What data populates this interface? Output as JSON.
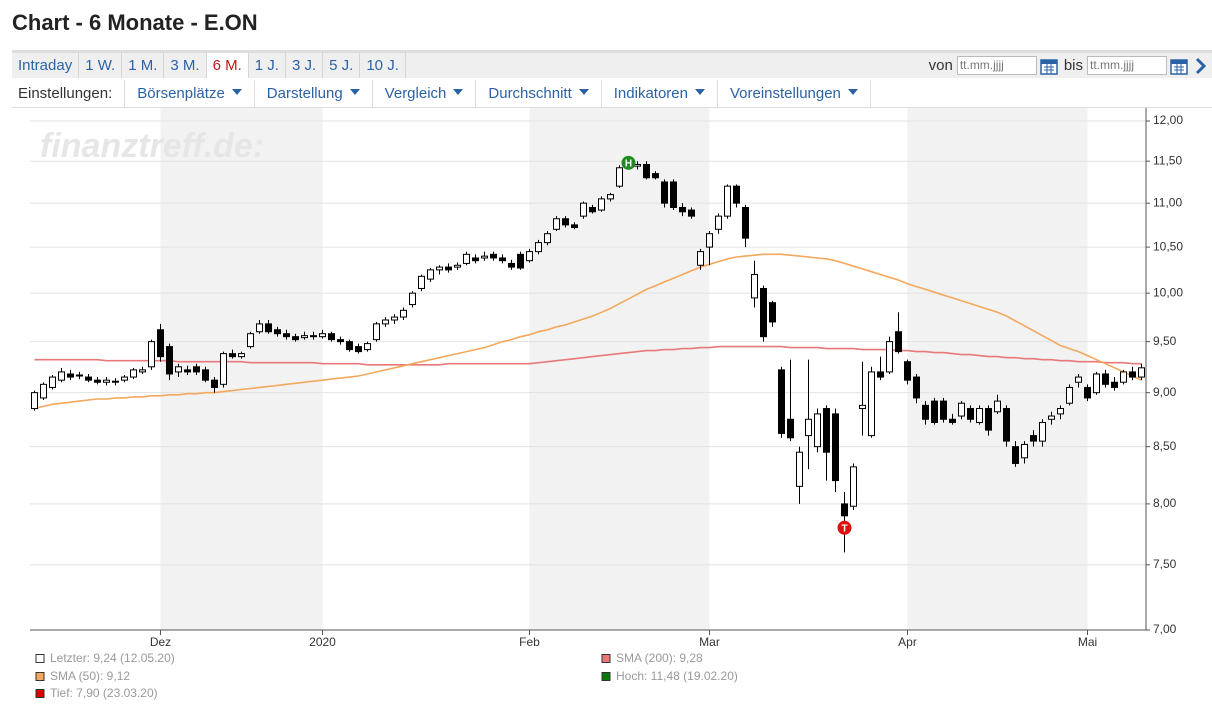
{
  "header": {
    "title": "Chart - 6 Monate - E.ON",
    "tabs": [
      "Intraday",
      "1 W.",
      "1 M.",
      "3 M.",
      "6 M.",
      "1 J.",
      "3 J.",
      "5 J.",
      "10 J."
    ],
    "from_label": "von",
    "to_label": "bis",
    "date_placeholder": "tt.mm.jjjj",
    "settings_label": "Einstellungen:",
    "menus": [
      "Börsenplätze",
      "Darstellung",
      "Vergleich",
      "Durchschnitt",
      "Indikatoren",
      "Voreinstellungen"
    ]
  },
  "chart_data": {
    "type": "candlestick",
    "watermark": "finanztreff.de:",
    "log_y": true,
    "grid": true,
    "up_color": "#ffffff",
    "down_color": "#000000",
    "ylim": [
      7,
      12
    ],
    "yticks": [
      {
        "value": 7,
        "label": "7,00"
      },
      {
        "value": 7.5,
        "label": "7,50"
      },
      {
        "value": 8,
        "label": "8,00"
      },
      {
        "value": 8.5,
        "label": "8,50"
      },
      {
        "value": 9,
        "label": "9,00"
      },
      {
        "value": 9.5,
        "label": "9,50"
      },
      {
        "value": 10,
        "label": "10,00"
      },
      {
        "value": 10.5,
        "label": "10,50"
      },
      {
        "value": 11,
        "label": "11,00"
      },
      {
        "value": 11.5,
        "label": "11,50"
      },
      {
        "value": 12,
        "label": "12,00"
      }
    ],
    "categories": [
      null,
      null,
      null,
      null,
      null,
      null,
      null,
      null,
      null,
      null,
      null,
      null,
      null,
      null,
      "Dez",
      null,
      null,
      null,
      null,
      null,
      null,
      null,
      null,
      null,
      null,
      null,
      null,
      null,
      null,
      null,
      null,
      null,
      "2020",
      null,
      null,
      null,
      null,
      null,
      null,
      null,
      null,
      null,
      null,
      null,
      null,
      null,
      null,
      null,
      null,
      null,
      null,
      null,
      null,
      null,
      null,
      "Feb",
      null,
      null,
      null,
      null,
      null,
      null,
      null,
      null,
      null,
      null,
      null,
      null,
      null,
      null,
      null,
      null,
      null,
      null,
      null,
      "Mar",
      null,
      null,
      null,
      null,
      null,
      null,
      null,
      null,
      null,
      null,
      null,
      null,
      null,
      null,
      null,
      null,
      null,
      null,
      null,
      null,
      null,
      "Apr",
      null,
      null,
      null,
      null,
      null,
      null,
      null,
      null,
      null,
      null,
      null,
      null,
      null,
      null,
      null,
      null,
      null,
      null,
      null,
      "Mai",
      null,
      null,
      null,
      null,
      null,
      null
    ],
    "ohlc": [
      [
        8.85,
        9.02,
        8.83,
        9.0
      ],
      [
        8.95,
        9.1,
        8.93,
        9.08
      ],
      [
        9.05,
        9.17,
        9.03,
        9.15
      ],
      [
        9.12,
        9.24,
        9.1,
        9.2
      ],
      [
        9.18,
        9.22,
        9.12,
        9.15
      ],
      [
        9.16,
        9.2,
        9.13,
        9.17
      ],
      [
        9.15,
        9.18,
        9.1,
        9.12
      ],
      [
        9.12,
        9.15,
        9.08,
        9.1
      ],
      [
        9.1,
        9.15,
        9.07,
        9.12
      ],
      [
        9.11,
        9.14,
        9.07,
        9.1
      ],
      [
        9.12,
        9.17,
        9.1,
        9.15
      ],
      [
        9.15,
        9.24,
        9.13,
        9.22
      ],
      [
        9.2,
        9.25,
        9.18,
        9.22
      ],
      [
        9.25,
        9.52,
        9.22,
        9.5
      ],
      [
        9.62,
        9.68,
        9.3,
        9.35
      ],
      [
        9.45,
        9.48,
        9.12,
        9.18
      ],
      [
        9.2,
        9.28,
        9.15,
        9.25
      ],
      [
        9.22,
        9.26,
        9.17,
        9.2
      ],
      [
        9.25,
        9.28,
        9.17,
        9.2
      ],
      [
        9.22,
        9.25,
        9.1,
        9.12
      ],
      [
        9.12,
        9.15,
        9.0,
        9.05
      ],
      [
        9.08,
        9.4,
        9.05,
        9.38
      ],
      [
        9.38,
        9.42,
        9.33,
        9.35
      ],
      [
        9.35,
        9.4,
        9.33,
        9.38
      ],
      [
        9.45,
        9.6,
        9.43,
        9.58
      ],
      [
        9.6,
        9.72,
        9.58,
        9.68
      ],
      [
        9.68,
        9.72,
        9.58,
        9.6
      ],
      [
        9.62,
        9.65,
        9.55,
        9.58
      ],
      [
        9.58,
        9.62,
        9.52,
        9.55
      ],
      [
        9.55,
        9.58,
        9.5,
        9.52
      ],
      [
        9.54,
        9.6,
        9.52,
        9.56
      ],
      [
        9.56,
        9.6,
        9.52,
        9.55
      ],
      [
        9.55,
        9.62,
        9.53,
        9.58
      ],
      [
        9.58,
        9.6,
        9.5,
        9.52
      ],
      [
        9.52,
        9.55,
        9.47,
        9.5
      ],
      [
        9.5,
        9.52,
        9.4,
        9.42
      ],
      [
        9.45,
        9.48,
        9.38,
        9.4
      ],
      [
        9.42,
        9.5,
        9.4,
        9.48
      ],
      [
        9.52,
        9.7,
        9.5,
        9.68
      ],
      [
        9.68,
        9.75,
        9.65,
        9.72
      ],
      [
        9.72,
        9.78,
        9.68,
        9.75
      ],
      [
        9.75,
        9.85,
        9.72,
        9.82
      ],
      [
        9.88,
        10.02,
        9.85,
        10.0
      ],
      [
        10.05,
        10.2,
        10.02,
        10.18
      ],
      [
        10.15,
        10.27,
        10.12,
        10.25
      ],
      [
        10.25,
        10.3,
        10.2,
        10.28
      ],
      [
        10.28,
        10.32,
        10.22,
        10.25
      ],
      [
        10.28,
        10.33,
        10.25,
        10.3
      ],
      [
        10.32,
        10.45,
        10.3,
        10.42
      ],
      [
        10.38,
        10.42,
        10.32,
        10.35
      ],
      [
        10.38,
        10.45,
        10.35,
        10.4
      ],
      [
        10.42,
        10.45,
        10.35,
        10.38
      ],
      [
        10.38,
        10.42,
        10.32,
        10.35
      ],
      [
        10.32,
        10.36,
        10.25,
        10.28
      ],
      [
        10.42,
        10.45,
        10.25,
        10.27
      ],
      [
        10.35,
        10.48,
        10.33,
        10.45
      ],
      [
        10.45,
        10.58,
        10.42,
        10.55
      ],
      [
        10.55,
        10.68,
        10.52,
        10.65
      ],
      [
        10.7,
        10.85,
        10.68,
        10.82
      ],
      [
        10.82,
        10.85,
        10.72,
        10.75
      ],
      [
        10.75,
        10.78,
        10.7,
        10.72
      ],
      [
        10.85,
        11.02,
        10.82,
        11.0
      ],
      [
        10.95,
        10.98,
        10.88,
        10.9
      ],
      [
        10.92,
        11.08,
        10.9,
        11.05
      ],
      [
        11.05,
        11.12,
        11.02,
        11.1
      ],
      [
        11.2,
        11.45,
        11.18,
        11.42
      ],
      [
        11.42,
        11.5,
        11.4,
        11.48
      ],
      [
        11.44,
        11.5,
        11.4,
        11.46
      ],
      [
        11.46,
        11.5,
        11.28,
        11.3
      ],
      [
        11.35,
        11.38,
        11.28,
        11.3
      ],
      [
        11.25,
        11.28,
        10.95,
        11.0
      ],
      [
        11.25,
        11.28,
        10.92,
        10.95
      ],
      [
        10.95,
        11.0,
        10.85,
        10.9
      ],
      [
        10.92,
        10.95,
        10.82,
        10.85
      ],
      [
        10.3,
        10.48,
        10.25,
        10.45
      ],
      [
        10.5,
        10.68,
        10.3,
        10.65
      ],
      [
        10.7,
        10.88,
        10.65,
        10.85
      ],
      [
        10.85,
        11.22,
        10.82,
        11.2
      ],
      [
        11.2,
        11.22,
        10.95,
        11.0
      ],
      [
        10.95,
        10.98,
        10.5,
        10.6
      ],
      [
        9.95,
        10.35,
        9.85,
        10.2
      ],
      [
        10.05,
        10.08,
        9.5,
        9.55
      ],
      [
        9.9,
        9.92,
        9.65,
        9.7
      ],
      [
        9.22,
        9.25,
        8.58,
        8.62
      ],
      [
        8.75,
        9.32,
        8.55,
        8.58
      ],
      [
        8.15,
        8.5,
        8.0,
        8.45
      ],
      [
        8.6,
        9.32,
        8.3,
        8.75
      ],
      [
        8.5,
        8.85,
        8.45,
        8.8
      ],
      [
        8.85,
        8.88,
        8.2,
        8.45
      ],
      [
        8.8,
        8.85,
        8.1,
        8.2
      ],
      [
        8.0,
        8.1,
        7.6,
        7.9
      ],
      [
        7.98,
        8.35,
        7.95,
        8.32
      ],
      [
        8.85,
        9.3,
        8.6,
        8.88
      ],
      [
        8.6,
        9.25,
        8.58,
        9.2
      ],
      [
        9.2,
        9.35,
        9.12,
        9.15
      ],
      [
        9.2,
        9.55,
        9.18,
        9.5
      ],
      [
        9.6,
        9.8,
        9.38,
        9.4
      ],
      [
        9.3,
        9.32,
        9.08,
        9.12
      ],
      [
        9.15,
        9.18,
        8.9,
        8.95
      ],
      [
        8.88,
        8.92,
        8.7,
        8.75
      ],
      [
        8.92,
        8.95,
        8.7,
        8.72
      ],
      [
        8.92,
        8.95,
        8.72,
        8.75
      ],
      [
        8.75,
        8.8,
        8.7,
        8.72
      ],
      [
        8.78,
        8.92,
        8.75,
        8.9
      ],
      [
        8.85,
        8.88,
        8.72,
        8.75
      ],
      [
        8.72,
        8.88,
        8.7,
        8.85
      ],
      [
        8.85,
        8.88,
        8.6,
        8.65
      ],
      [
        8.82,
        8.98,
        8.8,
        8.92
      ],
      [
        8.85,
        8.88,
        8.5,
        8.55
      ],
      [
        8.5,
        8.55,
        8.32,
        8.35
      ],
      [
        8.4,
        8.55,
        8.35,
        8.52
      ],
      [
        8.6,
        8.65,
        8.5,
        8.55
      ],
      [
        8.55,
        8.75,
        8.5,
        8.72
      ],
      [
        8.75,
        8.82,
        8.7,
        8.78
      ],
      [
        8.8,
        8.88,
        8.75,
        8.85
      ],
      [
        8.9,
        9.08,
        8.88,
        9.05
      ],
      [
        9.1,
        9.18,
        9.05,
        9.15
      ],
      [
        9.05,
        9.08,
        8.92,
        8.95
      ],
      [
        9.0,
        9.2,
        8.98,
        9.18
      ],
      [
        9.18,
        9.22,
        9.05,
        9.08
      ],
      [
        9.1,
        9.15,
        9.02,
        9.05
      ],
      [
        9.1,
        9.22,
        9.08,
        9.2
      ],
      [
        9.2,
        9.25,
        9.12,
        9.15
      ],
      [
        9.15,
        9.28,
        9.12,
        9.24
      ]
    ],
    "series": [
      {
        "name": "SMA (200): 9,28",
        "color": "#e8787a",
        "values": [
          9.32,
          9.32,
          9.32,
          9.32,
          9.32,
          9.32,
          9.32,
          9.32,
          9.31,
          9.31,
          9.31,
          9.31,
          9.31,
          9.31,
          9.31,
          9.31,
          9.3,
          9.3,
          9.3,
          9.3,
          9.3,
          9.3,
          9.3,
          9.3,
          9.29,
          9.29,
          9.29,
          9.29,
          9.29,
          9.29,
          9.29,
          9.29,
          9.28,
          9.28,
          9.28,
          9.28,
          9.28,
          9.27,
          9.27,
          9.27,
          9.27,
          9.27,
          9.27,
          9.27,
          9.27,
          9.27,
          9.28,
          9.28,
          9.28,
          9.28,
          9.28,
          9.28,
          9.28,
          9.28,
          9.28,
          9.28,
          9.29,
          9.3,
          9.31,
          9.32,
          9.33,
          9.34,
          9.35,
          9.36,
          9.37,
          9.38,
          9.39,
          9.4,
          9.41,
          9.41,
          9.42,
          9.42,
          9.43,
          9.43,
          9.44,
          9.44,
          9.45,
          9.45,
          9.45,
          9.45,
          9.45,
          9.45,
          9.45,
          9.45,
          9.44,
          9.44,
          9.44,
          9.44,
          9.43,
          9.43,
          9.43,
          9.43,
          9.42,
          9.42,
          9.42,
          9.42,
          9.41,
          9.41,
          9.4,
          9.4,
          9.39,
          9.39,
          9.38,
          9.37,
          9.37,
          9.36,
          9.35,
          9.35,
          9.34,
          9.34,
          9.33,
          9.33,
          9.32,
          9.32,
          9.31,
          9.31,
          9.3,
          9.3,
          9.3,
          9.29,
          9.29,
          9.29,
          9.28,
          9.28
        ]
      },
      {
        "name": "SMA (50): 9,12",
        "color": "#f3a85c",
        "values": [
          8.85,
          8.87,
          8.89,
          8.9,
          8.91,
          8.92,
          8.93,
          8.94,
          8.94,
          8.95,
          8.95,
          8.96,
          8.96,
          8.97,
          8.97,
          8.98,
          8.98,
          8.99,
          8.99,
          9.0,
          9.0,
          9.01,
          9.02,
          9.03,
          9.04,
          9.05,
          9.06,
          9.07,
          9.08,
          9.09,
          9.1,
          9.11,
          9.12,
          9.13,
          9.14,
          9.15,
          9.16,
          9.18,
          9.2,
          9.22,
          9.24,
          9.26,
          9.28,
          9.3,
          9.32,
          9.34,
          9.36,
          9.38,
          9.4,
          9.42,
          9.44,
          9.47,
          9.5,
          9.52,
          9.55,
          9.57,
          9.6,
          9.62,
          9.65,
          9.67,
          9.7,
          9.73,
          9.76,
          9.8,
          9.84,
          9.89,
          9.94,
          9.99,
          10.04,
          10.08,
          10.12,
          10.16,
          10.2,
          10.24,
          10.28,
          10.31,
          10.34,
          10.37,
          10.39,
          10.4,
          10.41,
          10.42,
          10.42,
          10.42,
          10.41,
          10.4,
          10.39,
          10.38,
          10.37,
          10.35,
          10.32,
          10.29,
          10.26,
          10.23,
          10.2,
          10.17,
          10.14,
          10.1,
          10.07,
          10.04,
          10.01,
          9.98,
          9.95,
          9.92,
          9.89,
          9.86,
          9.83,
          9.8,
          9.76,
          9.71,
          9.66,
          9.61,
          9.56,
          9.51,
          9.46,
          9.43,
          9.4,
          9.36,
          9.32,
          9.28,
          9.24,
          9.2,
          9.16,
          9.12
        ]
      }
    ],
    "markers": {
      "high": {
        "text": "H",
        "color": "#1e8c1e"
      },
      "low": {
        "text": "T",
        "color": "#e01010"
      }
    },
    "notes": [
      {
        "text": "Letzter: 9,24 (12.05.20)",
        "color": "#ffffff"
      },
      {
        "text": "Hoch: 11,48 (19.02.20)",
        "color": "#0a7a0a"
      },
      {
        "text": "Tief: 7,90 (23.03.20)",
        "color": "#dd0000"
      }
    ]
  }
}
